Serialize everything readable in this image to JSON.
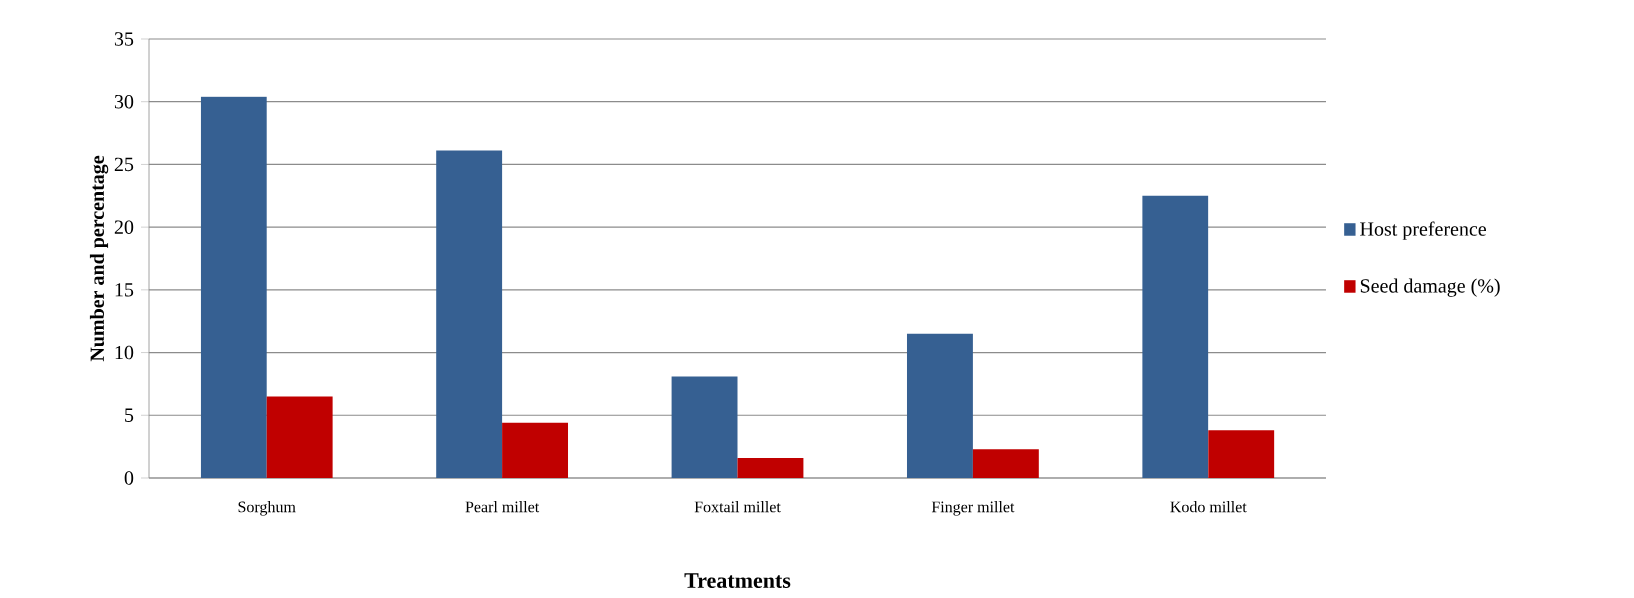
{
  "chart_data": {
    "type": "bar",
    "xlabel": "Treatments",
    "ylabel": "Number and percentage",
    "categories": [
      "Sorghum",
      "Pearl millet",
      "Foxtail millet",
      "Finger millet",
      "Kodo millet"
    ],
    "series": [
      {
        "name": "Host preference",
        "color": "#366092",
        "values": [
          30.4,
          26.1,
          8.1,
          11.5,
          22.5
        ]
      },
      {
        "name": "Seed damage (%)",
        "color": "#c00000",
        "values": [
          6.5,
          4.4,
          1.6,
          2.3,
          3.8
        ]
      }
    ],
    "ylim": [
      0,
      35
    ],
    "yticks": [
      0,
      5,
      10,
      15,
      20,
      25,
      30,
      35
    ],
    "grid": "y",
    "legend": "right"
  }
}
